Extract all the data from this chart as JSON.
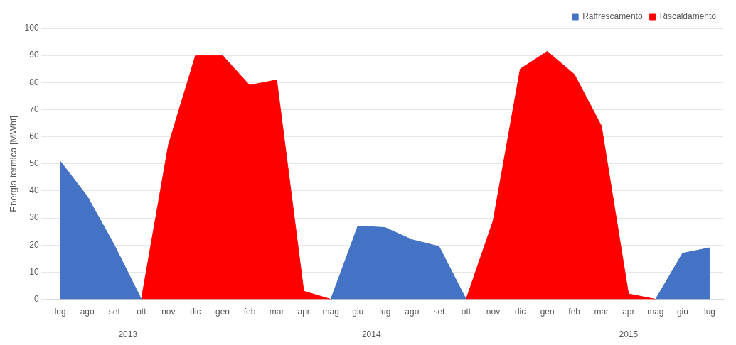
{
  "chart_data": {
    "type": "area",
    "ylabel": "Energia termica [MWht]",
    "categories": [
      "lug",
      "ago",
      "set",
      "ott",
      "nov",
      "dic",
      "gen",
      "feb",
      "mar",
      "apr",
      "mag",
      "giu",
      "lug",
      "ago",
      "set",
      "ott",
      "nov",
      "dic",
      "gen",
      "feb",
      "mar",
      "apr",
      "mag",
      "giu",
      "lug"
    ],
    "series": [
      {
        "name": "Raffrescamento",
        "color": "#4472c4",
        "values": [
          51,
          38,
          20,
          0,
          null,
          null,
          null,
          null,
          null,
          null,
          0,
          27,
          26.5,
          22,
          19.5,
          0,
          null,
          null,
          null,
          null,
          null,
          null,
          0,
          17,
          19
        ]
      },
      {
        "name": "Riscaldamento",
        "color": "#ff0000",
        "values": [
          null,
          null,
          null,
          0,
          57,
          90,
          90,
          79,
          81,
          3,
          0,
          null,
          null,
          null,
          null,
          0,
          29,
          85,
          91.5,
          83,
          64,
          2,
          0,
          null,
          null
        ]
      }
    ],
    "ylim": [
      0,
      100
    ],
    "yticks": [
      0,
      10,
      20,
      30,
      40,
      50,
      60,
      70,
      80,
      90,
      100
    ],
    "grid": "y",
    "legend": "top right",
    "annotations": [
      "2013",
      "2014",
      "2015"
    ]
  }
}
